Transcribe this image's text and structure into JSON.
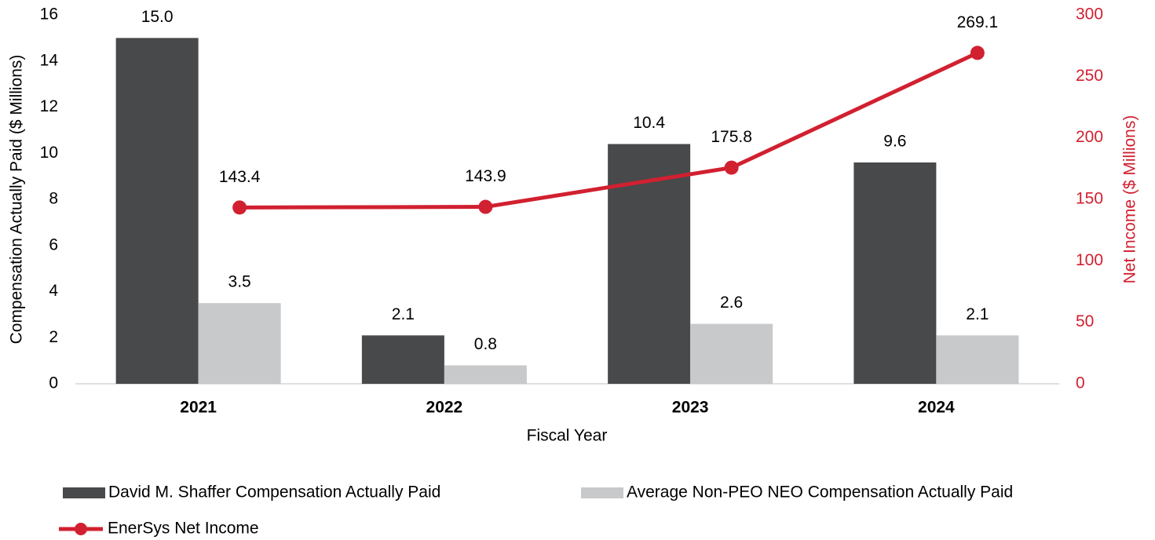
{
  "chart_data": {
    "type": "bar",
    "categories": [
      "2021",
      "2022",
      "2023",
      "2024"
    ],
    "series": [
      {
        "name": "David M. Shaffer Compensation Actually Paid",
        "color": "#48494b",
        "values": [
          15.0,
          2.1,
          10.4,
          9.6
        ],
        "value_labels": [
          "15.0",
          "2.1",
          "10.4",
          "9.6"
        ]
      },
      {
        "name": "Average Non-PEO NEO Compensation Actually Paid",
        "color": "#c8c9ca",
        "values": [
          3.5,
          0.8,
          2.6,
          2.1
        ],
        "value_labels": [
          "3.5",
          "0.8",
          "2.6",
          "2.1"
        ]
      },
      {
        "name": "EnerSys Net Income",
        "color": "#d12030",
        "type": "line",
        "axis": "y2",
        "values": [
          143.4,
          143.9,
          175.8,
          269.1
        ]
      }
    ],
    "xlabel": "Fiscal Year",
    "ylabel": "Compensation Actually Paid ($ Millions)",
    "y2label": "Net Income ($ Millions)",
    "ylim": [
      0,
      16
    ],
    "yticks": [
      0,
      2,
      4,
      6,
      8,
      10,
      12,
      14,
      16
    ],
    "y2lim": [
      0,
      300
    ],
    "y2ticks": [
      0,
      50,
      100,
      150,
      200,
      250,
      300
    ],
    "grid": false,
    "legend": "bottom"
  }
}
